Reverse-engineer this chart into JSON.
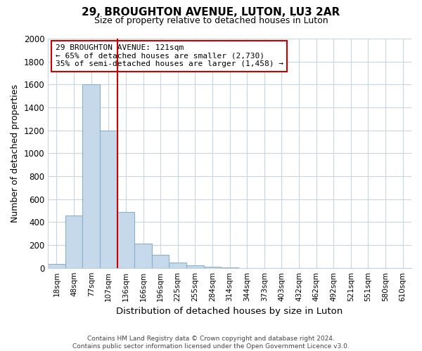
{
  "title": "29, BROUGHTON AVENUE, LUTON, LU3 2AR",
  "subtitle": "Size of property relative to detached houses in Luton",
  "xlabel": "Distribution of detached houses by size in Luton",
  "ylabel": "Number of detached properties",
  "bar_color": "#c6d9ea",
  "bar_edge_color": "#8ab0cc",
  "categories": [
    "18sqm",
    "48sqm",
    "77sqm",
    "107sqm",
    "136sqm",
    "166sqm",
    "196sqm",
    "225sqm",
    "255sqm",
    "284sqm",
    "314sqm",
    "344sqm",
    "373sqm",
    "403sqm",
    "432sqm",
    "462sqm",
    "492sqm",
    "521sqm",
    "551sqm",
    "580sqm",
    "610sqm"
  ],
  "values": [
    35,
    455,
    1600,
    1200,
    485,
    210,
    115,
    45,
    20,
    10,
    5,
    0,
    0,
    0,
    0,
    0,
    0,
    0,
    0,
    0,
    0
  ],
  "vline_pos": 3.5,
  "vline_color": "#cc0000",
  "annotation_line1": "29 BROUGHTON AVENUE: 121sqm",
  "annotation_line2": "← 65% of detached houses are smaller (2,730)",
  "annotation_line3": "35% of semi-detached houses are larger (1,458) →",
  "annotation_box_color": "#ffffff",
  "annotation_box_edge": "#cc0000",
  "ylim": [
    0,
    2000
  ],
  "yticks": [
    0,
    200,
    400,
    600,
    800,
    1000,
    1200,
    1400,
    1600,
    1800,
    2000
  ],
  "footnote": "Contains HM Land Registry data © Crown copyright and database right 2024.\nContains public sector information licensed under the Open Government Licence v3.0.",
  "bg_color": "#ffffff",
  "grid_color": "#c8d4de"
}
